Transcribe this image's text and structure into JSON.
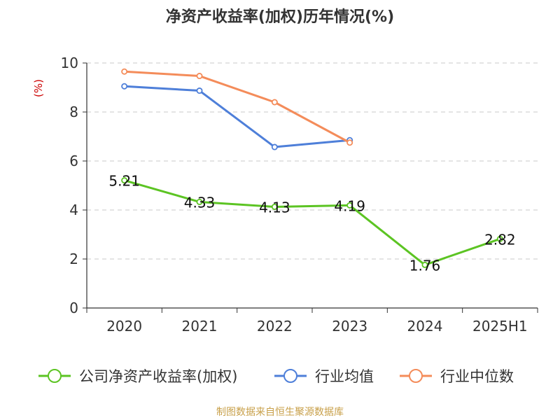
{
  "chart_data": {
    "type": "line",
    "title": "净资产收益率(加权)历年情况(%)",
    "ylabel": "(%)",
    "categories": [
      "2020",
      "2021",
      "2022",
      "2023",
      "2024",
      "2025H1"
    ],
    "ylim": [
      0,
      10
    ],
    "yticks": [
      0,
      2,
      4,
      6,
      8,
      10
    ],
    "grid": true,
    "legend_position": "bottom",
    "series": [
      {
        "name": "公司净资产收益率(加权)",
        "color": "#5cc423",
        "values": [
          5.21,
          4.33,
          4.13,
          4.19,
          1.76,
          2.82
        ],
        "labels": [
          "5.21",
          "4.33",
          "4.13",
          "4.19",
          "1.76",
          "2.82"
        ]
      },
      {
        "name": "行业均值",
        "color": "#4e7fd9",
        "values": [
          9.05,
          8.87,
          6.57,
          6.85,
          null,
          null
        ]
      },
      {
        "name": "行业中位数",
        "color": "#f48c5a",
        "values": [
          9.65,
          9.47,
          8.4,
          6.75,
          null,
          null
        ]
      }
    ]
  },
  "source": "制图数据来自恒生聚源数据库"
}
